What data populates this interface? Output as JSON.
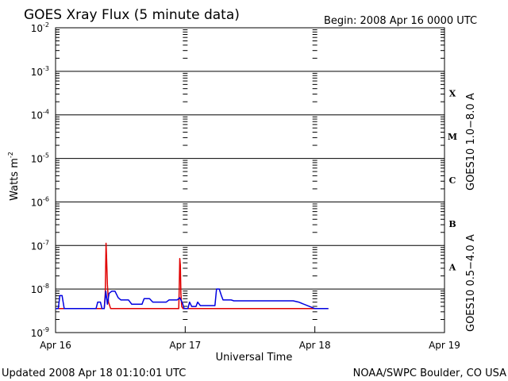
{
  "header": {
    "title": "GOES Xray Flux (5 minute data)",
    "begin": "Begin:  2008 Apr 16 0000 UTC"
  },
  "footer": {
    "updated": "Updated 2008 Apr 18 01:10:01 UTC",
    "credit": "NOAA/SWPC Boulder, CO USA"
  },
  "chart_data": {
    "type": "line",
    "xlabel": "Universal Time",
    "ylabel": "Watts m",
    "ylabel_sup": "-2",
    "x_range_hours": [
      0,
      72
    ],
    "x_ticks": [
      {
        "hour": 0,
        "label": "Apr 16"
      },
      {
        "hour": 24,
        "label": "Apr 17"
      },
      {
        "hour": 48,
        "label": "Apr 18"
      },
      {
        "hour": 72,
        "label": "Apr 19"
      }
    ],
    "y_scale": "log",
    "y_range_exp": [
      -9,
      -2
    ],
    "y_ticks": [
      {
        "exp": -2,
        "label": "10",
        "sup": "-2"
      },
      {
        "exp": -3,
        "label": "10",
        "sup": "-3"
      },
      {
        "exp": -4,
        "label": "10",
        "sup": "-4"
      },
      {
        "exp": -5,
        "label": "10",
        "sup": "-5"
      },
      {
        "exp": -6,
        "label": "10",
        "sup": "-6"
      },
      {
        "exp": -7,
        "label": "10",
        "sup": "-7"
      },
      {
        "exp": -8,
        "label": "10",
        "sup": "-8"
      },
      {
        "exp": -9,
        "label": "10",
        "sup": "-9"
      }
    ],
    "flare_classes": [
      {
        "label": "X",
        "exp_mid": -3.5
      },
      {
        "label": "M",
        "exp_mid": -4.5
      },
      {
        "label": "C",
        "exp_mid": -5.5
      },
      {
        "label": "B",
        "exp_mid": -6.5
      },
      {
        "label": "A",
        "exp_mid": -7.5
      }
    ],
    "series": [
      {
        "name": "GOES10 1.0−8.0 A",
        "color": "#e00000",
        "points": [
          [
            0,
            -8.45
          ],
          [
            9.0,
            -8.45
          ],
          [
            9.2,
            -8.1
          ],
          [
            9.35,
            -6.95
          ],
          [
            9.45,
            -7.3
          ],
          [
            9.6,
            -7.9
          ],
          [
            9.8,
            -8.3
          ],
          [
            10.2,
            -8.45
          ],
          [
            22.8,
            -8.45
          ],
          [
            22.9,
            -8.0
          ],
          [
            23.0,
            -7.3
          ],
          [
            23.1,
            -7.45
          ],
          [
            23.2,
            -8.1
          ],
          [
            23.35,
            -8.4
          ],
          [
            23.6,
            -8.45
          ],
          [
            48.0,
            -8.45
          ],
          [
            50.5,
            -8.45
          ]
        ]
      },
      {
        "name": "GOES10 0.5−4.0 A",
        "color": "#0000e0",
        "points": [
          [
            0,
            -8.45
          ],
          [
            0.5,
            -8.45
          ],
          [
            0.8,
            -8.15
          ],
          [
            1.2,
            -8.15
          ],
          [
            1.6,
            -8.45
          ],
          [
            7.5,
            -8.45
          ],
          [
            7.8,
            -8.3
          ],
          [
            8.3,
            -8.3
          ],
          [
            8.6,
            -8.45
          ],
          [
            9.0,
            -8.45
          ],
          [
            9.3,
            -8.05
          ],
          [
            9.6,
            -8.35
          ],
          [
            9.9,
            -8.1
          ],
          [
            10.4,
            -8.05
          ],
          [
            11.0,
            -8.05
          ],
          [
            11.6,
            -8.2
          ],
          [
            12.1,
            -8.25
          ],
          [
            13.5,
            -8.25
          ],
          [
            14.1,
            -8.35
          ],
          [
            16.0,
            -8.35
          ],
          [
            16.4,
            -8.22
          ],
          [
            17.4,
            -8.22
          ],
          [
            18.0,
            -8.3
          ],
          [
            20.5,
            -8.3
          ],
          [
            21.0,
            -8.25
          ],
          [
            22.5,
            -8.25
          ],
          [
            23.0,
            -8.2
          ],
          [
            23.5,
            -8.32
          ],
          [
            23.8,
            -8.45
          ],
          [
            24.5,
            -8.45
          ],
          [
            24.8,
            -8.3
          ],
          [
            25.2,
            -8.4
          ],
          [
            26.0,
            -8.4
          ],
          [
            26.3,
            -8.3
          ],
          [
            26.8,
            -8.38
          ],
          [
            29.5,
            -8.38
          ],
          [
            29.8,
            -8.0
          ],
          [
            30.3,
            -8.0
          ],
          [
            30.7,
            -8.15
          ],
          [
            31.0,
            -8.25
          ],
          [
            32.5,
            -8.25
          ],
          [
            33.0,
            -8.27
          ],
          [
            44.0,
            -8.27
          ],
          [
            45.0,
            -8.3
          ],
          [
            47.0,
            -8.4
          ],
          [
            48.0,
            -8.45
          ],
          [
            50.5,
            -8.45
          ]
        ]
      }
    ]
  }
}
